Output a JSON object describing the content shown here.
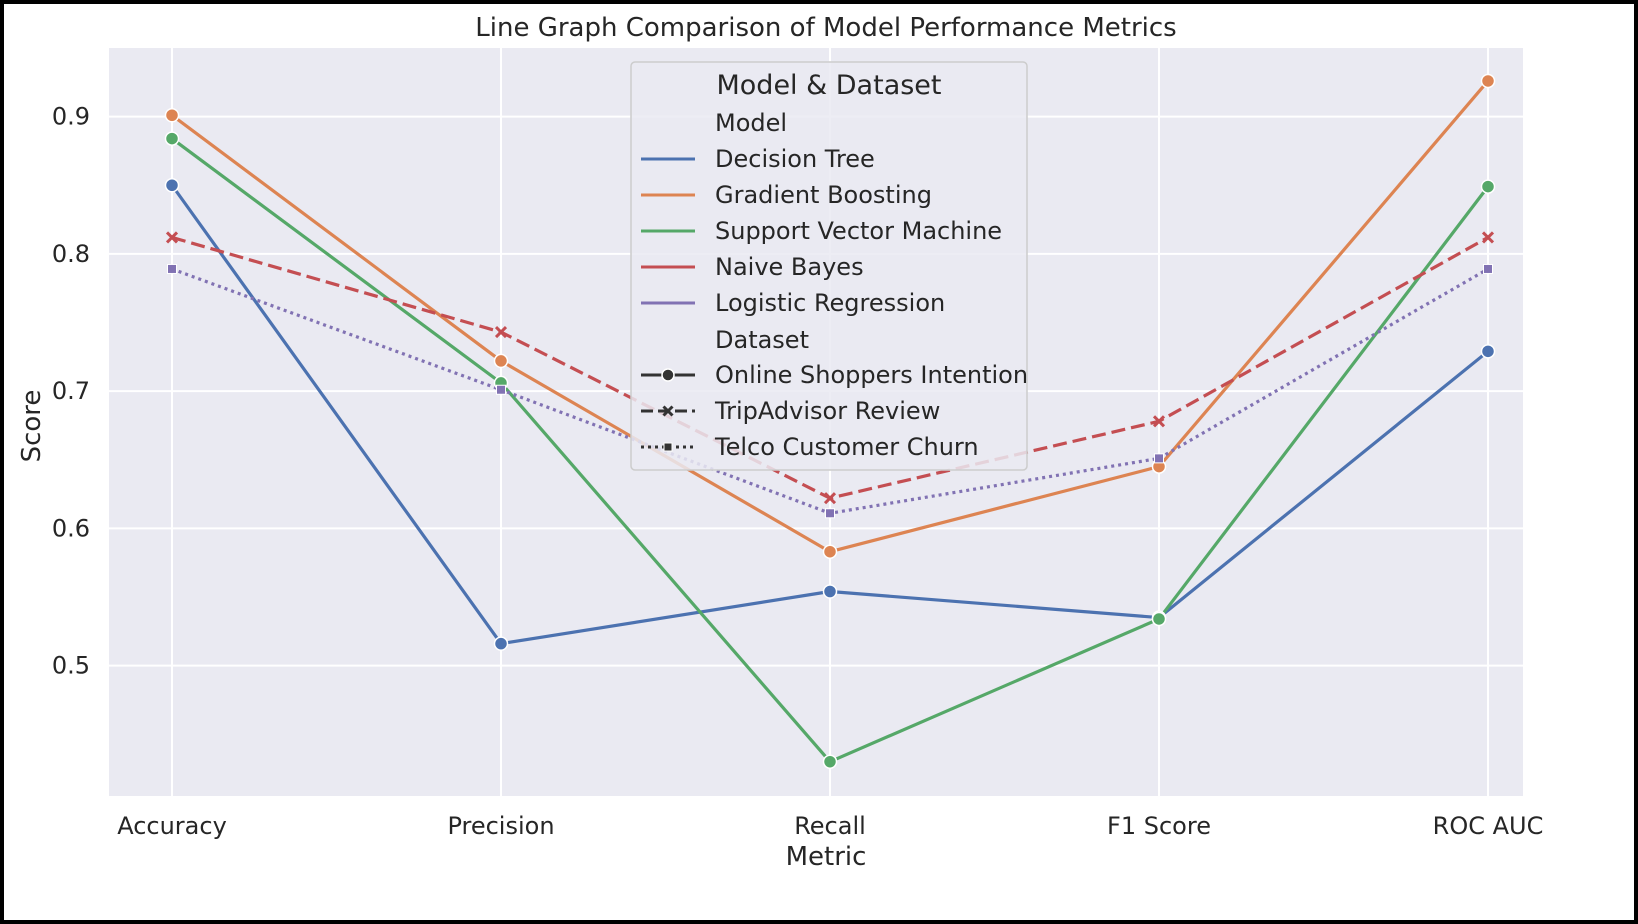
{
  "chart_data": {
    "type": "line",
    "title": "Line Graph Comparison of Model Performance Metrics",
    "xlabel": "Metric",
    "ylabel": "Score",
    "categories": [
      "Accuracy",
      "Precision",
      "Recall",
      "F1 Score",
      "ROC AUC"
    ],
    "yticks": [
      "0.5",
      "0.6",
      "0.7",
      "0.8",
      "0.9"
    ],
    "ylim": [
      0.405,
      0.95
    ],
    "grid": true,
    "legend": {
      "title": "Model & Dataset",
      "placement": "top-center",
      "model_heading": "Model",
      "dataset_heading": "Dataset",
      "models": [
        "Decision Tree",
        "Gradient Boosting",
        "Support Vector Machine",
        "Naive Bayes",
        "Logistic Regression"
      ],
      "datasets": [
        "Online Shoppers Intention",
        "TripAdvisor Review",
        "Telco Customer Churn"
      ]
    },
    "series": [
      {
        "name": "Decision Tree",
        "dataset": "Online Shoppers Intention",
        "style": "solid",
        "marker": "circle",
        "color": "#4c72b0",
        "values": [
          0.85,
          0.516,
          0.554,
          0.535,
          0.729
        ]
      },
      {
        "name": "Gradient Boosting",
        "dataset": "Online Shoppers Intention",
        "style": "solid",
        "marker": "circle",
        "color": "#dd8452",
        "values": [
          0.901,
          0.722,
          0.583,
          0.645,
          0.926
        ]
      },
      {
        "name": "Support Vector Machine",
        "dataset": "Online Shoppers Intention",
        "style": "solid",
        "marker": "circle",
        "color": "#55a868",
        "values": [
          0.884,
          0.706,
          0.43,
          0.534,
          0.849
        ]
      },
      {
        "name": "Naive Bayes",
        "dataset": "TripAdvisor Review",
        "style": "dashed",
        "marker": "x",
        "color": "#c44e52",
        "values": [
          0.812,
          0.743,
          0.622,
          0.678,
          0.812
        ]
      },
      {
        "name": "Logistic Regression",
        "dataset": "Telco Customer Churn",
        "style": "dotted",
        "marker": "square",
        "color": "#8172b3",
        "values": [
          0.789,
          0.701,
          0.611,
          0.651,
          0.789
        ]
      }
    ]
  }
}
